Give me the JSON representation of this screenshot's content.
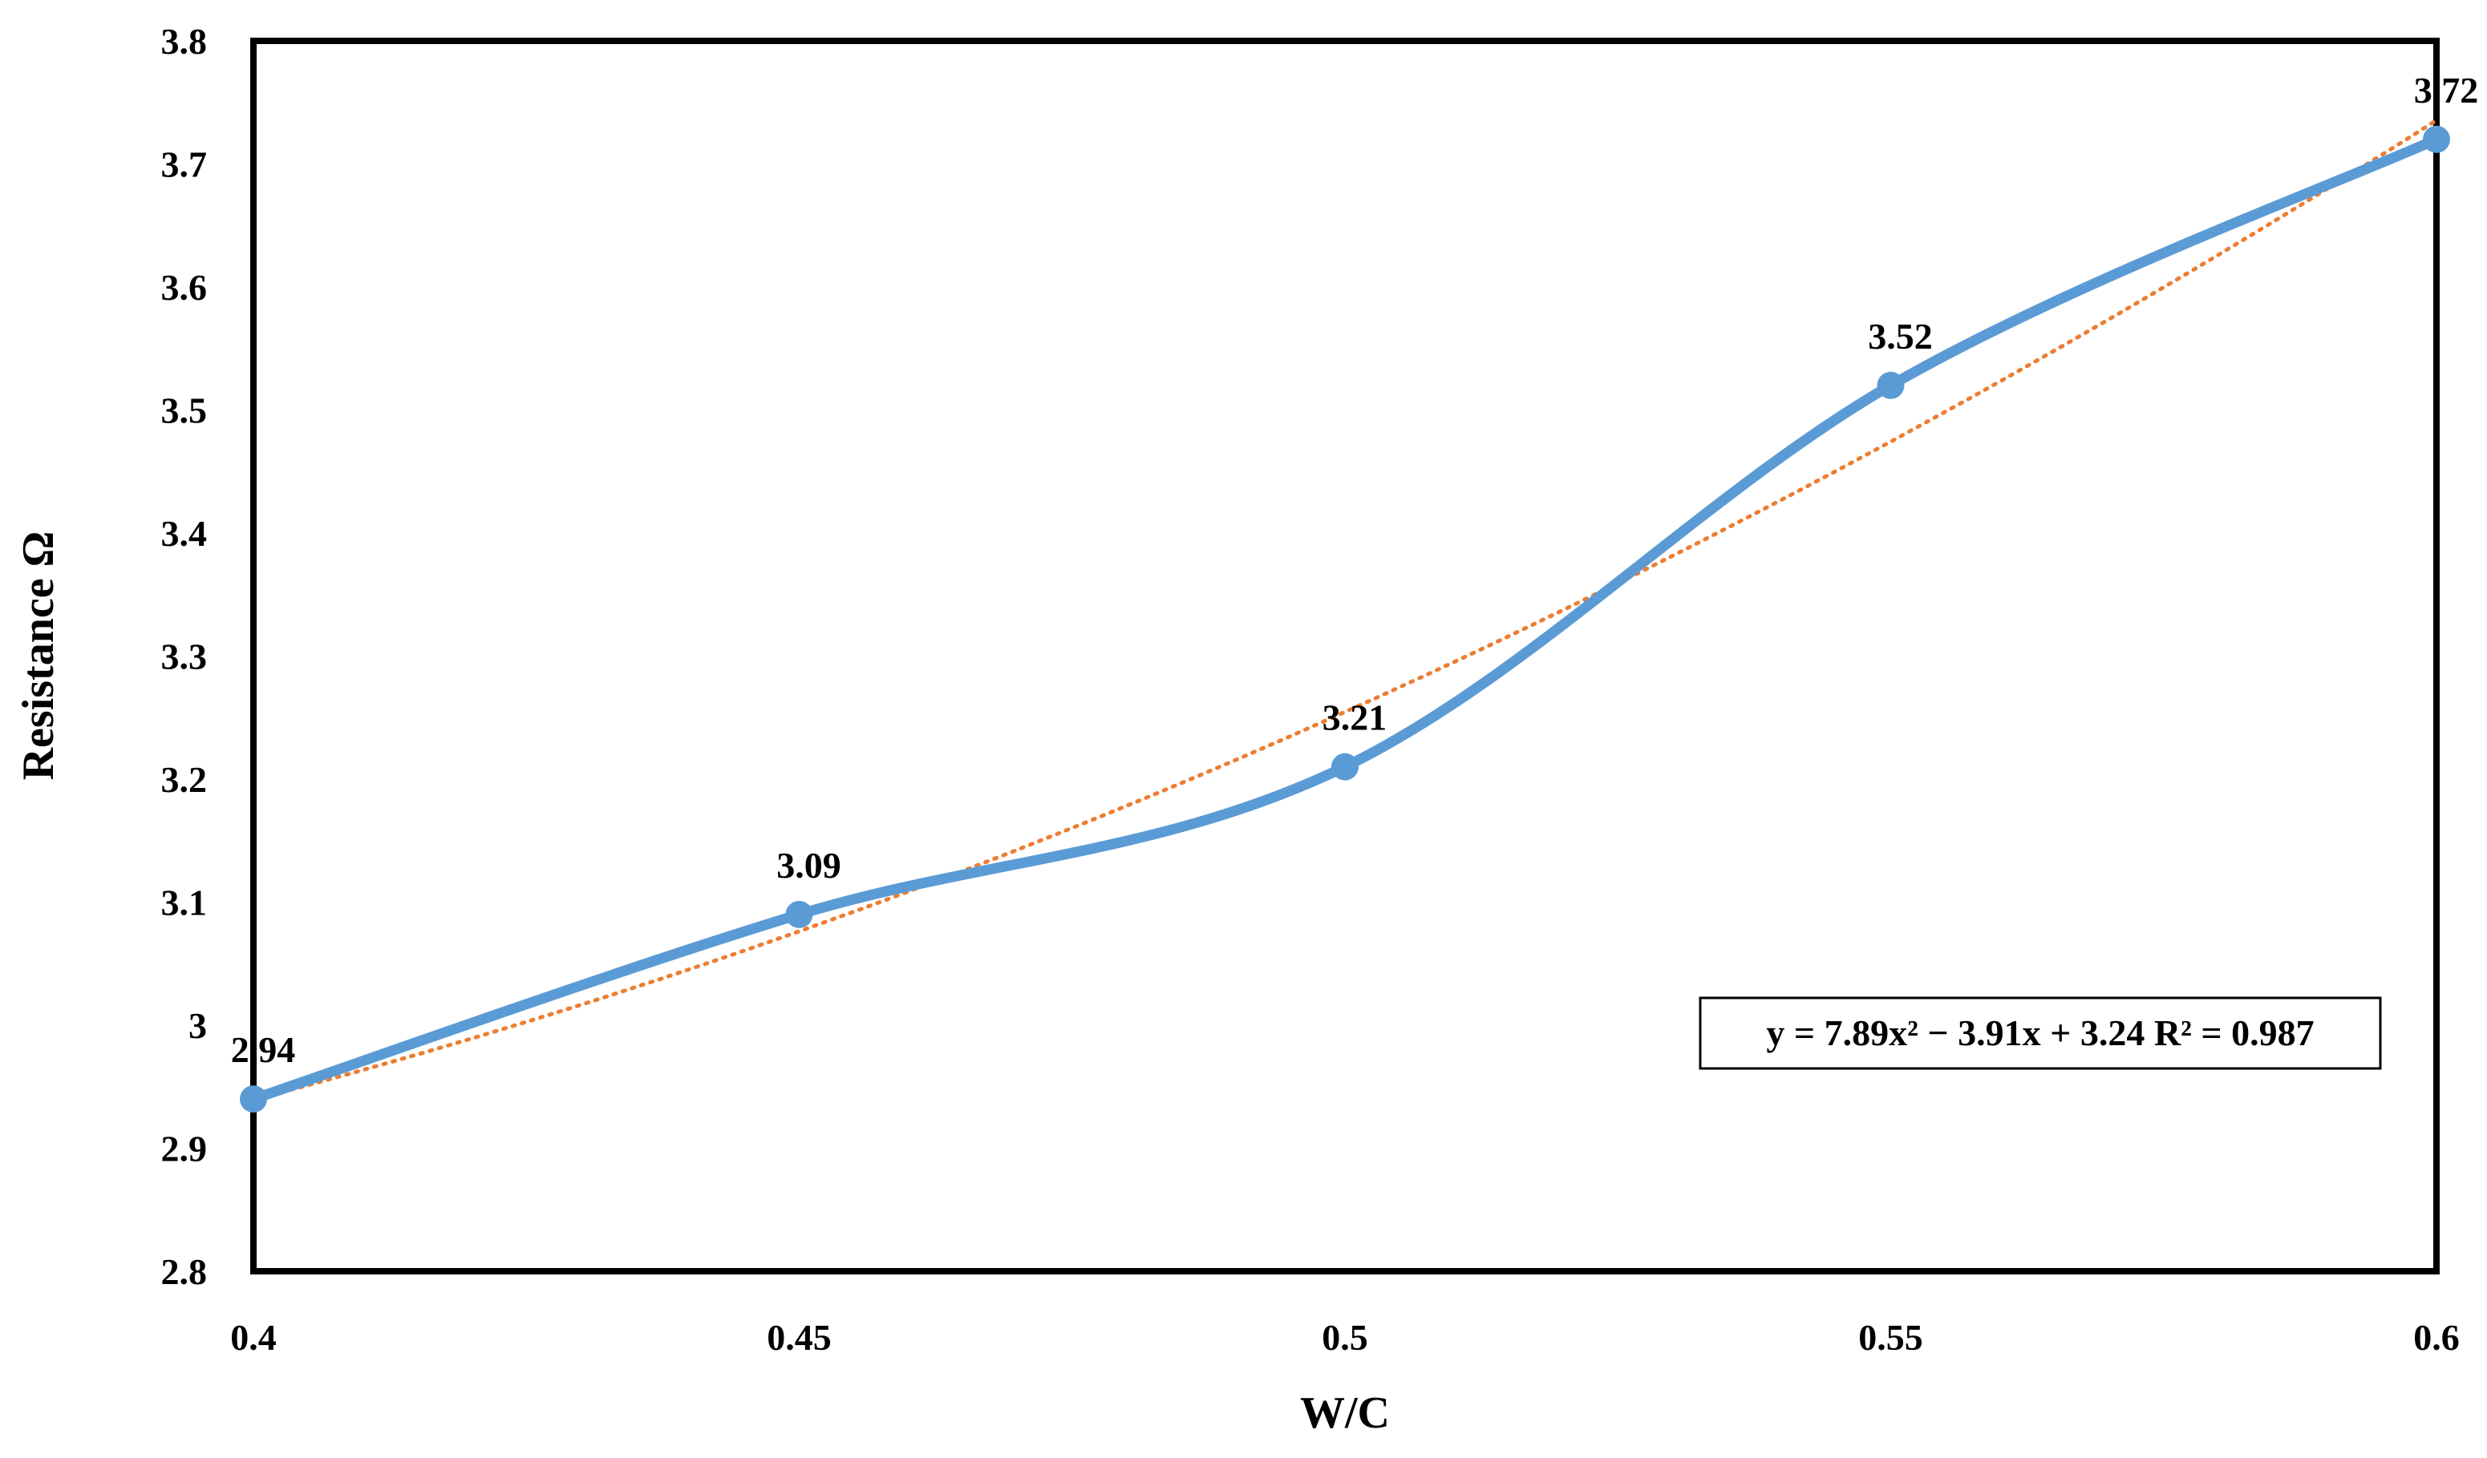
{
  "chart_data": {
    "type": "line",
    "title": "",
    "xlabel": "W/C",
    "ylabel": "Resistance Ω",
    "x": [
      0.4,
      0.45,
      0.5,
      0.55,
      0.6
    ],
    "x_tick_labels": [
      "0.4",
      "0.45",
      "0.5",
      "0.55",
      "0.6"
    ],
    "y_tick_labels": [
      "2.8",
      "2.9",
      "3",
      "3.1",
      "3.2",
      "3.3",
      "3.4",
      "3.5",
      "3.6",
      "3.7",
      "3.8"
    ],
    "xlim": [
      0.4,
      0.6
    ],
    "ylim": [
      2.8,
      3.8
    ],
    "grid": false,
    "series": [
      {
        "values": [
          2.94,
          3.09,
          3.21,
          3.52,
          3.72
        ],
        "data_labels": [
          "2.94",
          "3.09",
          "3.21",
          "3.52",
          "3.72"
        ],
        "color": "#5B9BD5",
        "smooth": true,
        "markers": true
      }
    ],
    "trendline": {
      "type": "polynomial",
      "order": 2,
      "color": "#ED7D31",
      "style": "dotted",
      "coefficients": [
        7.89,
        -3.91,
        3.24
      ],
      "equation_label": "y = 7.89x² − 3.91x + 3.24 R² = 0.987"
    }
  }
}
